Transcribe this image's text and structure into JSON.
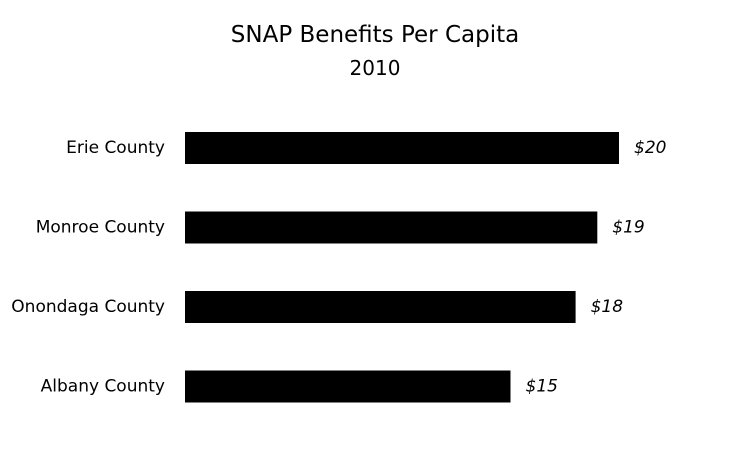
{
  "chart_data": {
    "type": "bar",
    "orientation": "horizontal",
    "title": "SNAP Benefits Per Capita",
    "subtitle": "2010",
    "categories": [
      "Erie County",
      "Monroe County",
      "Onondaga County",
      "Albany County"
    ],
    "values": [
      20,
      19,
      18,
      15
    ],
    "value_labels": [
      "$20",
      "$19",
      "$18",
      "$15"
    ],
    "xlabel": "",
    "ylabel": "",
    "xlim": [
      0,
      20
    ],
    "grid": false,
    "legend": "none",
    "bar_color": "#000000"
  }
}
